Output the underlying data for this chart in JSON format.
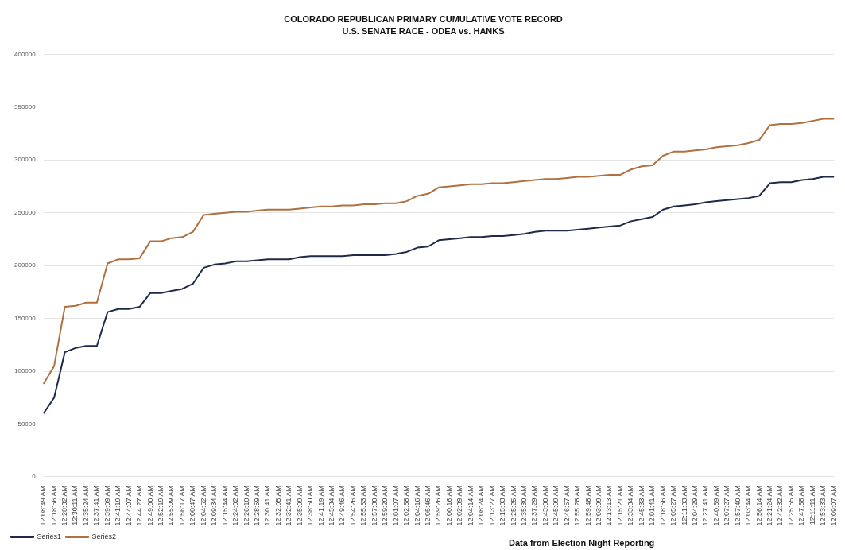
{
  "chart_data": {
    "type": "line",
    "title": "COLORADO REPUBLICAN PRIMARY CUMULATIVE VOTE RECORD",
    "subtitle": "U.S. SENATE RACE - ODEA vs. HANKS",
    "categories": [
      "12:08:49 AM",
      "12:18:56 AM",
      "12:28:32 AM",
      "12:30:11 AM",
      "12:35:24 AM",
      "12:37:41 AM",
      "12:39:09 AM",
      "12:41:19 AM",
      "12:44:07 AM",
      "12:44:27 AM",
      "12:49:00 AM",
      "12:52:19 AM",
      "12:55:09 AM",
      "12:56:17 AM",
      "12:00:47 AM",
      "12:04:52 AM",
      "12:09:34 AM",
      "12:15:44 AM",
      "12:24:02 AM",
      "12:26:10 AM",
      "12:28:59 AM",
      "12:30:41 AM",
      "12:32:05 AM",
      "12:32:41 AM",
      "12:35:09 AM",
      "12:38:50 AM",
      "12:41:19 AM",
      "12:45:34 AM",
      "12:49:46 AM",
      "12:54:26 AM",
      "12:55:53 AM",
      "12:57:30 AM",
      "12:59:20 AM",
      "12:01:07 AM",
      "12:02:58 AM",
      "12:04:16 AM",
      "12:05:46 AM",
      "12:59:26 AM",
      "12:00:16 AM",
      "12:02:39 AM",
      "12:04:14 AM",
      "12:08:24 AM",
      "12:13:27 AM",
      "12:15:33 AM",
      "12:25:25 AM",
      "12:35:30 AM",
      "12:37:29 AM",
      "12:43:00 AM",
      "12:45:09 AM",
      "12:46:57 AM",
      "12:55:28 AM",
      "12:59:48 AM",
      "12:03:09 AM",
      "12:13:13 AM",
      "12:15:21 AM",
      "12:33:34 AM",
      "12:45:33 AM",
      "12:01:41 AM",
      "12:18:56 AM",
      "12:05:27 AM",
      "12:11:33 AM",
      "12:04:29 AM",
      "12:27:41 AM",
      "12:40:59 AM",
      "12:07:27 AM",
      "12:57:40 AM",
      "12:03:44 AM",
      "12:56:14 AM",
      "12:21:24 AM",
      "12:42:32 AM",
      "12:25:55 AM",
      "12:47:58 AM",
      "12:11:11 AM",
      "12:53:33 AM",
      "12:09:07 AM"
    ],
    "series": [
      {
        "name": "Series1",
        "color": "#1f2a4a",
        "values": [
          60000,
          75000,
          118000,
          122000,
          124000,
          124000,
          156000,
          159000,
          159000,
          161000,
          174000,
          174000,
          176000,
          178000,
          183000,
          198000,
          201000,
          202000,
          204000,
          204000,
          205000,
          206000,
          206000,
          206000,
          208000,
          209000,
          209000,
          209000,
          209000,
          210000,
          210000,
          210000,
          210000,
          211000,
          213000,
          217000,
          218000,
          224000,
          225000,
          226000,
          227000,
          227000,
          228000,
          228000,
          229000,
          230000,
          232000,
          233000,
          233000,
          233000,
          234000,
          235000,
          236000,
          237000,
          238000,
          242000,
          244000,
          246000,
          253000,
          256000,
          257000,
          258000,
          260000,
          261000,
          262000,
          263000,
          264000,
          266000,
          278000,
          279000,
          279000,
          281000,
          282000,
          284000,
          284000
        ]
      },
      {
        "name": "Series2",
        "color": "#b0703f",
        "values": [
          88000,
          105000,
          161000,
          162000,
          165000,
          165000,
          202000,
          206000,
          206000,
          207000,
          223000,
          223000,
          226000,
          227000,
          232000,
          248000,
          249000,
          250000,
          251000,
          251000,
          252000,
          253000,
          253000,
          253000,
          254000,
          255000,
          256000,
          256000,
          257000,
          257000,
          258000,
          258000,
          259000,
          259000,
          261000,
          266000,
          268000,
          274000,
          275000,
          276000,
          277000,
          277000,
          278000,
          278000,
          279000,
          280000,
          281000,
          282000,
          282000,
          283000,
          284000,
          284000,
          285000,
          286000,
          286000,
          291000,
          294000,
          295000,
          304000,
          308000,
          308000,
          309000,
          310000,
          312000,
          313000,
          314000,
          316000,
          319000,
          333000,
          334000,
          334000,
          335000,
          337000,
          339000,
          339000
        ]
      }
    ],
    "ylim": [
      0,
      400000
    ],
    "yticks": [
      0,
      50000,
      100000,
      150000,
      200000,
      250000,
      300000,
      350000,
      400000
    ],
    "grid": "y",
    "legend": "bottom",
    "marker": "none",
    "line_style": "solid",
    "annotations": [
      "Data from Election Night Reporting"
    ]
  }
}
